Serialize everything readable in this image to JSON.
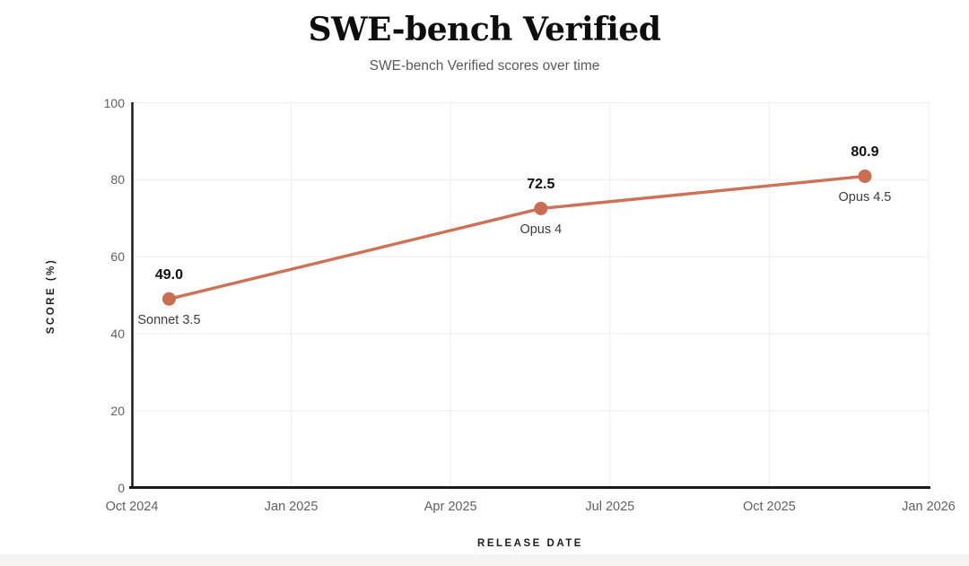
{
  "page": {
    "title": "SWE-bench Verified",
    "subtitle": "SWE-bench Verified scores over time"
  },
  "chart_data": {
    "type": "line",
    "title": "SWE-bench Verified",
    "subtitle": "SWE-bench Verified scores over time",
    "xlabel": "RELEASE DATE",
    "ylabel": "SCORE (%)",
    "ylim": [
      0,
      100
    ],
    "y_ticks": [
      "0",
      "20",
      "40",
      "60",
      "80",
      "100"
    ],
    "y_tick_values": [
      0,
      20,
      40,
      60,
      80,
      100
    ],
    "x_ticks": [
      "Oct 2024",
      "Jan 2025",
      "Apr 2025",
      "Jul 2025",
      "Oct 2025",
      "Jan 2026"
    ],
    "x_tick_months": [
      0,
      3,
      6,
      9,
      12,
      15
    ],
    "x_axis_span_months": 15,
    "grid": true,
    "legend_position": "none",
    "colors": {
      "line": "#CD7257",
      "marker": "#C96E51",
      "grid": "#ededed",
      "axis": "#1a1a1a"
    },
    "series": [
      {
        "name": "SWE-bench Verified score",
        "points": [
          {
            "label": "Sonnet 3.5",
            "value": 49.0,
            "value_label": "49.0",
            "x_months": 0.7
          },
          {
            "label": "Opus 4",
            "value": 72.5,
            "value_label": "72.5",
            "x_months": 7.7
          },
          {
            "label": "Opus 4.5",
            "value": 80.9,
            "value_label": "80.9",
            "x_months": 13.8
          }
        ]
      }
    ]
  }
}
